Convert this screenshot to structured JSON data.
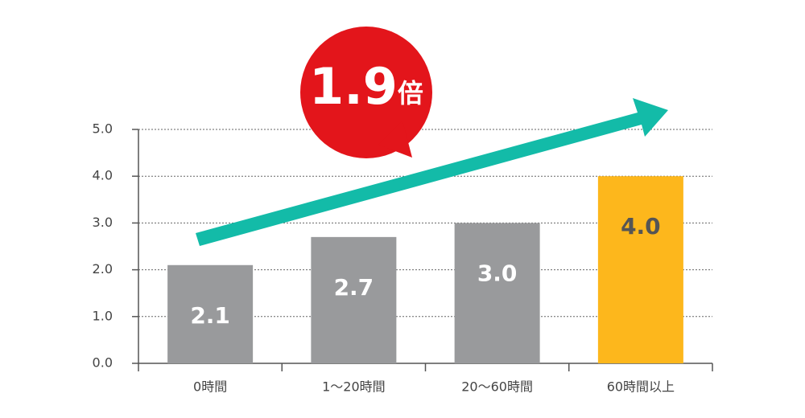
{
  "chart_data": {
    "type": "bar",
    "categories": [
      "0時間",
      "1〜20時間",
      "20〜60時間",
      "60時間以上"
    ],
    "values": [
      2.1,
      2.7,
      3.0,
      4.0
    ],
    "value_labels": [
      "2.1",
      "2.7",
      "3.0",
      "4.0"
    ],
    "colors": [
      "#999a9c",
      "#999a9c",
      "#999a9c",
      "#fdb71c"
    ],
    "value_label_colors": [
      "#ffffff",
      "#ffffff",
      "#ffffff",
      "#555555"
    ],
    "ylim": [
      0,
      5
    ],
    "yticks": [
      {
        "value": 0,
        "label": "0.0"
      },
      {
        "value": 1,
        "label": "1.0"
      },
      {
        "value": 2,
        "label": "2.0"
      },
      {
        "value": 3,
        "label": "3.0"
      },
      {
        "value": 4,
        "label": "4.0"
      },
      {
        "value": 5,
        "label": "5.0"
      }
    ],
    "grid": true,
    "annotation": {
      "number": "1.9",
      "unit": "倍"
    }
  }
}
